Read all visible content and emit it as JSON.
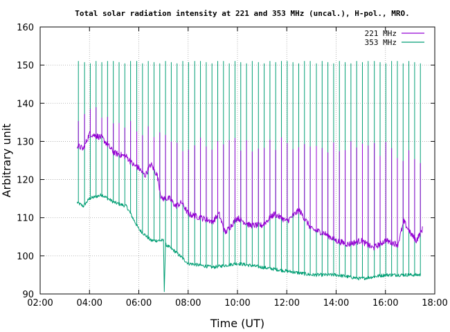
{
  "chart_data": {
    "type": "line",
    "title": "Total solar radiation intensity at 221 and 353 MHz (uncal.), H-pol., MRO.",
    "xlabel": "Time (UT)",
    "ylabel": "Arbitrary unit",
    "xlim": [
      "02:00",
      "18:00"
    ],
    "ylim": [
      90,
      160
    ],
    "x_ticks": [
      "02:00",
      "04:00",
      "06:00",
      "08:00",
      "10:00",
      "12:00",
      "14:00",
      "16:00",
      "18:00"
    ],
    "y_ticks": [
      "90",
      "100",
      "110",
      "120",
      "130",
      "140",
      "150",
      "160"
    ],
    "grid": true,
    "legend_position": "top-right",
    "series": [
      {
        "name": "221 MHz",
        "color": "#9400d3",
        "baseline": [
          [
            "03:30",
            129
          ],
          [
            "03:45",
            128
          ],
          [
            "04:00",
            132
          ],
          [
            "04:30",
            131
          ],
          [
            "05:00",
            127
          ],
          [
            "05:30",
            126
          ],
          [
            "05:45",
            124
          ],
          [
            "06:00",
            123
          ],
          [
            "06:15",
            121
          ],
          [
            "06:30",
            124
          ],
          [
            "06:45",
            121
          ],
          [
            "06:55",
            115
          ],
          [
            "07:15",
            115
          ],
          [
            "07:30",
            113
          ],
          [
            "07:45",
            114
          ],
          [
            "08:00",
            111
          ],
          [
            "08:30",
            110
          ],
          [
            "09:00",
            109
          ],
          [
            "09:15",
            111
          ],
          [
            "09:30",
            106
          ],
          [
            "10:00",
            110
          ],
          [
            "10:30",
            108
          ],
          [
            "11:00",
            108
          ],
          [
            "11:30",
            111
          ],
          [
            "12:00",
            109
          ],
          [
            "12:30",
            112
          ],
          [
            "13:00",
            107
          ],
          [
            "13:30",
            106
          ],
          [
            "14:00",
            104
          ],
          [
            "14:30",
            103
          ],
          [
            "15:00",
            104
          ],
          [
            "15:30",
            102
          ],
          [
            "16:00",
            104
          ],
          [
            "16:30",
            103
          ],
          [
            "16:45",
            109
          ],
          [
            "17:00",
            106
          ],
          [
            "17:15",
            104
          ],
          [
            "17:30",
            107
          ]
        ],
        "spike_peaks": [
          [
            "03:35",
            139
          ],
          [
            "04:00",
            140
          ],
          [
            "04:30",
            140
          ],
          [
            "05:00",
            137
          ],
          [
            "05:30",
            136
          ],
          [
            "06:00",
            134
          ],
          [
            "06:30",
            134
          ],
          [
            "07:00",
            132
          ],
          [
            "08:00",
            131
          ],
          [
            "09:00",
            131
          ],
          [
            "10:00",
            131
          ],
          [
            "11:00",
            131
          ],
          [
            "12:00",
            131
          ],
          [
            "13:00",
            131
          ],
          [
            "14:00",
            131
          ],
          [
            "15:00",
            130
          ],
          [
            "16:00",
            130
          ],
          [
            "17:00",
            128
          ]
        ]
      },
      {
        "name": "353 MHz",
        "color": "#009e73",
        "baseline": [
          [
            "03:30",
            114
          ],
          [
            "03:45",
            113
          ],
          [
            "04:00",
            115
          ],
          [
            "04:30",
            116
          ],
          [
            "05:00",
            114
          ],
          [
            "05:30",
            113
          ],
          [
            "05:45",
            110
          ],
          [
            "06:00",
            107
          ],
          [
            "06:30",
            104
          ],
          [
            "07:00",
            104
          ],
          [
            "07:02",
            91
          ],
          [
            "07:05",
            103
          ],
          [
            "07:30",
            101
          ],
          [
            "08:00",
            98
          ],
          [
            "09:00",
            97
          ],
          [
            "10:00",
            98
          ],
          [
            "11:00",
            97
          ],
          [
            "12:00",
            96
          ],
          [
            "13:00",
            95
          ],
          [
            "14:00",
            95
          ],
          [
            "15:00",
            94
          ],
          [
            "16:00",
            95
          ],
          [
            "17:00",
            95
          ],
          [
            "17:25",
            95
          ]
        ],
        "spike_peak": 151
      }
    ]
  }
}
